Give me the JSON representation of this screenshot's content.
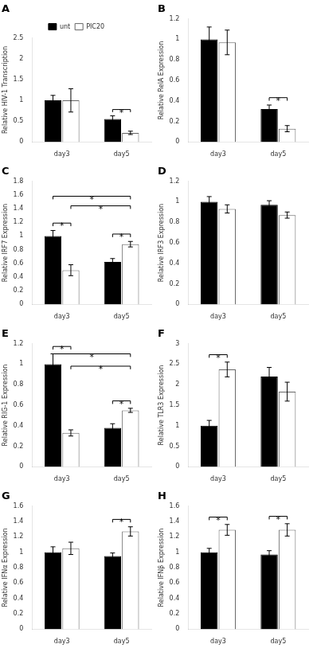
{
  "chart_data": [
    {
      "type": "bar",
      "title": "A",
      "ylabel": "Relative HIV-1 Transcription",
      "categories": [
        "day3",
        "day5"
      ],
      "series": [
        {
          "name": "unt",
          "color": "#000000",
          "values": [
            1.0,
            0.55
          ],
          "errors": [
            0.12,
            0.08
          ]
        },
        {
          "name": "PIC20",
          "color": "#ffffff",
          "values": [
            1.0,
            0.22
          ],
          "errors": [
            0.28,
            0.04
          ]
        }
      ],
      "ylim": [
        0,
        2.5
      ],
      "yticks": [
        0,
        0.5,
        1,
        1.5,
        2,
        2.5
      ],
      "grid": false,
      "legend": "top",
      "annotations": [
        {
          "text": "*",
          "y": 0.78,
          "from": {
            "category": "day5",
            "series": "unt"
          },
          "to": {
            "category": "day5",
            "series": "PIC20"
          }
        }
      ]
    },
    {
      "type": "bar",
      "title": "B",
      "ylabel": "Relative RelA Expression",
      "categories": [
        "day3",
        "day5"
      ],
      "series": [
        {
          "name": "unt",
          "color": "#000000",
          "values": [
            1.0,
            0.32
          ],
          "errors": [
            0.12,
            0.04
          ]
        },
        {
          "name": "PIC20",
          "color": "#ffffff",
          "values": [
            0.97,
            0.13
          ],
          "errors": [
            0.12,
            0.03
          ]
        }
      ],
      "ylim": [
        0,
        1.2
      ],
      "yticks": [
        0,
        0.2,
        0.4,
        0.6,
        0.8,
        1,
        1.2
      ],
      "grid": false,
      "legend": false,
      "annotations": [
        {
          "text": "*",
          "y": 0.432,
          "from": {
            "category": "day5",
            "series": "unt"
          },
          "to": {
            "category": "day5",
            "series": "PIC20"
          }
        }
      ]
    },
    {
      "type": "bar",
      "title": "C",
      "ylabel": "Relative IRF7 Expression",
      "categories": [
        "day3",
        "day5"
      ],
      "series": [
        {
          "name": "unt",
          "color": "#000000",
          "values": [
            1.0,
            0.62
          ],
          "errors": [
            0.08,
            0.05
          ]
        },
        {
          "name": "PIC20",
          "color": "#ffffff",
          "values": [
            0.5,
            0.88
          ],
          "errors": [
            0.08,
            0.04
          ]
        }
      ],
      "ylim": [
        0,
        1.8
      ],
      "yticks": [
        0,
        0.2,
        0.4,
        0.6,
        0.8,
        1,
        1.2,
        1.4,
        1.6,
        1.8
      ],
      "grid": false,
      "legend": false,
      "annotations": [
        {
          "text": "*",
          "y": 1.188,
          "from": {
            "category": "day3",
            "series": "unt"
          },
          "to": {
            "category": "day3",
            "series": "PIC20"
          }
        },
        {
          "text": "*",
          "y": 1.028,
          "from": {
            "category": "day5",
            "series": "unt"
          },
          "to": {
            "category": "day5",
            "series": "PIC20"
          }
        },
        {
          "text": "*",
          "y": 1.58,
          "from": {
            "category": "day3",
            "series": "unt"
          },
          "to": {
            "category": "day5",
            "series": "PIC20"
          }
        },
        {
          "text": "*",
          "y": 1.44,
          "from": {
            "category": "day3",
            "series": "PIC20"
          },
          "to": {
            "category": "day5",
            "series": "PIC20"
          }
        }
      ]
    },
    {
      "type": "bar",
      "title": "D",
      "ylabel": "Relative IRF3 Expression",
      "categories": [
        "day3",
        "day5"
      ],
      "series": [
        {
          "name": "unt",
          "color": "#000000",
          "values": [
            1.0,
            0.97
          ],
          "errors": [
            0.05,
            0.04
          ]
        },
        {
          "name": "PIC20",
          "color": "#ffffff",
          "values": [
            0.93,
            0.87
          ],
          "errors": [
            0.04,
            0.03
          ]
        }
      ],
      "ylim": [
        0,
        1.2
      ],
      "yticks": [
        0,
        0.2,
        0.4,
        0.6,
        0.8,
        1,
        1.2
      ],
      "grid": false,
      "legend": false,
      "annotations": []
    },
    {
      "type": "bar",
      "title": "E",
      "ylabel": "Relative RIG-1 Expression",
      "categories": [
        "day3",
        "day5"
      ],
      "series": [
        {
          "name": "unt",
          "color": "#000000",
          "values": [
            1.0,
            0.38
          ],
          "errors": [
            0.1,
            0.04
          ]
        },
        {
          "name": "PIC20",
          "color": "#ffffff",
          "values": [
            0.33,
            0.55
          ],
          "errors": [
            0.03,
            0.02
          ]
        }
      ],
      "ylim": [
        0,
        1.2
      ],
      "yticks": [
        0,
        0.2,
        0.4,
        0.6,
        0.8,
        1,
        1.2
      ],
      "grid": false,
      "legend": false,
      "annotations": [
        {
          "text": "*",
          "y": 1.172,
          "from": {
            "category": "day3",
            "series": "unt"
          },
          "to": {
            "category": "day3",
            "series": "PIC20"
          }
        },
        {
          "text": "*",
          "y": 0.642,
          "from": {
            "category": "day5",
            "series": "unt"
          },
          "to": {
            "category": "day5",
            "series": "PIC20"
          }
        },
        {
          "text": "*",
          "y": 1.1,
          "from": {
            "category": "day3",
            "series": "unt"
          },
          "to": {
            "category": "day5",
            "series": "PIC20"
          }
        },
        {
          "text": "*",
          "y": 0.98,
          "from": {
            "category": "day3",
            "series": "PIC20"
          },
          "to": {
            "category": "day5",
            "series": "PIC20"
          }
        }
      ]
    },
    {
      "type": "bar",
      "title": "F",
      "ylabel": "Relative TLR3 Expression",
      "categories": [
        "day3",
        "day5"
      ],
      "series": [
        {
          "name": "unt",
          "color": "#000000",
          "values": [
            1.0,
            2.2
          ],
          "errors": [
            0.13,
            0.22
          ]
        },
        {
          "name": "PIC20",
          "color": "#ffffff",
          "values": [
            2.37,
            1.83
          ],
          "errors": [
            0.18,
            0.23
          ]
        }
      ],
      "ylim": [
        0,
        3.0
      ],
      "yticks": [
        0,
        0.5,
        1,
        1.5,
        2,
        2.5,
        3
      ],
      "grid": false,
      "legend": false,
      "annotations": [
        {
          "text": "*",
          "y": 2.73,
          "from": {
            "category": "day3",
            "series": "unt"
          },
          "to": {
            "category": "day3",
            "series": "PIC20"
          }
        }
      ]
    },
    {
      "type": "bar",
      "title": "G",
      "ylabel": "Relative IFNα Expression",
      "categories": [
        "day3",
        "day5"
      ],
      "series": [
        {
          "name": "unt",
          "color": "#000000",
          "values": [
            1.0,
            0.95
          ],
          "errors": [
            0.07,
            0.04
          ]
        },
        {
          "name": "PIC20",
          "color": "#ffffff",
          "values": [
            1.05,
            1.27
          ],
          "errors": [
            0.08,
            0.06
          ]
        }
      ],
      "ylim": [
        0,
        1.6
      ],
      "yticks": [
        0,
        0.2,
        0.4,
        0.6,
        0.8,
        1,
        1.2,
        1.4,
        1.6
      ],
      "grid": false,
      "legend": false,
      "annotations": [
        {
          "text": "*",
          "y": 1.426,
          "from": {
            "category": "day5",
            "series": "unt"
          },
          "to": {
            "category": "day5",
            "series": "PIC20"
          }
        }
      ]
    },
    {
      "type": "bar",
      "title": "H",
      "ylabel": "Relative IFNβ Expression",
      "categories": [
        "day3",
        "day5"
      ],
      "series": [
        {
          "name": "unt",
          "color": "#000000",
          "values": [
            1.0,
            0.97
          ],
          "errors": [
            0.05,
            0.05
          ]
        },
        {
          "name": "PIC20",
          "color": "#ffffff",
          "values": [
            1.29,
            1.29
          ],
          "errors": [
            0.07,
            0.08
          ]
        }
      ],
      "ylim": [
        0,
        1.6
      ],
      "yticks": [
        0,
        0.2,
        0.4,
        0.6,
        0.8,
        1,
        1.2,
        1.4,
        1.6
      ],
      "grid": false,
      "legend": false,
      "annotations": [
        {
          "text": "*",
          "y": 1.456,
          "from": {
            "category": "day3",
            "series": "unt"
          },
          "to": {
            "category": "day3",
            "series": "PIC20"
          }
        },
        {
          "text": "*",
          "y": 1.466,
          "from": {
            "category": "day5",
            "series": "unt"
          },
          "to": {
            "category": "day5",
            "series": "PIC20"
          }
        }
      ]
    }
  ]
}
